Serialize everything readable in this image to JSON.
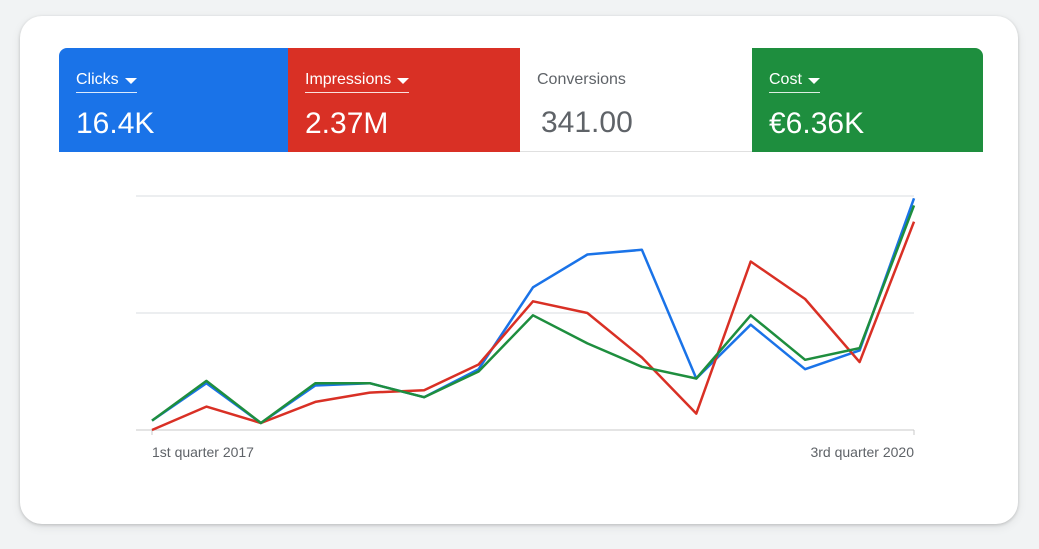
{
  "metrics": [
    {
      "label": "Clicks",
      "value": "16.4K",
      "color": "#1a73e8",
      "active": true
    },
    {
      "label": "Impressions",
      "value": "2.37M",
      "color": "#d93025",
      "active": true
    },
    {
      "label": "Conversions",
      "value": "341.00",
      "color": "#ffffff",
      "active": false
    },
    {
      "label": "Cost",
      "value": "€6.36K",
      "color": "#1e8e3e",
      "active": true
    }
  ],
  "chart_data": {
    "type": "line",
    "x_tick_labels": [
      "1st quarter 2017",
      "3rd quarter 2020"
    ],
    "ylim": [
      0,
      100
    ],
    "grid": true,
    "series": [
      {
        "color": "#1a73e8",
        "values": [
          4,
          20,
          3,
          19,
          20,
          14,
          26,
          61,
          75,
          77,
          22,
          45,
          26,
          34,
          99
        ]
      },
      {
        "color": "#d93025",
        "values": [
          0,
          10,
          3,
          12,
          16,
          17,
          28,
          55,
          50,
          31,
          7,
          72,
          56,
          29,
          89
        ]
      },
      {
        "color": "#1e8e3e",
        "values": [
          4,
          21,
          3,
          20,
          20,
          14,
          25,
          49,
          37,
          27,
          22,
          49,
          30,
          35,
          96
        ]
      }
    ]
  }
}
